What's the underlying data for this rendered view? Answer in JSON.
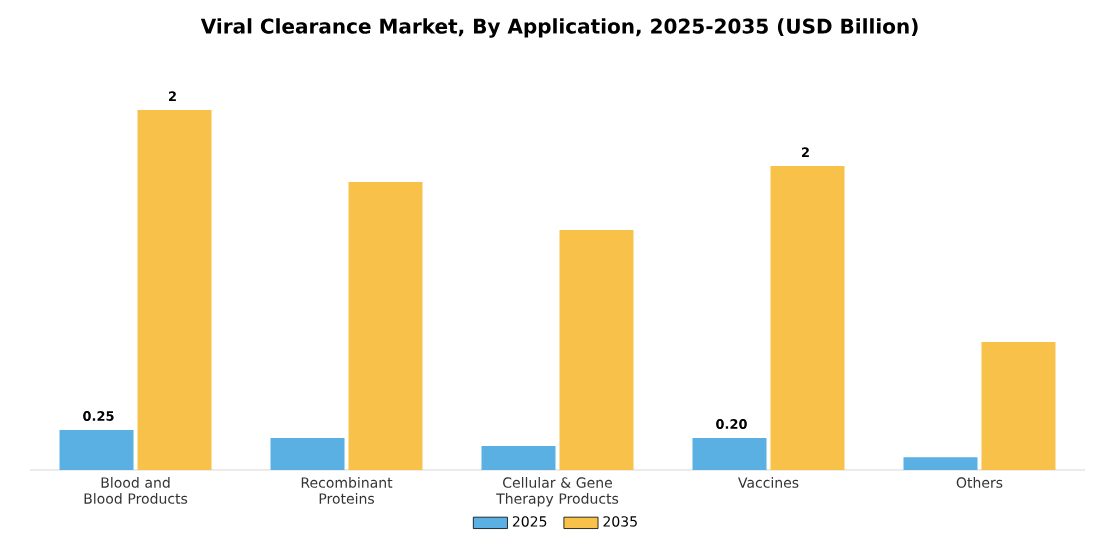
{
  "chart_data": {
    "type": "bar",
    "title": "Viral Clearance Market, By Application, 2025-2035 (USD Billion)",
    "categories": [
      "Blood and Blood Products",
      "Recombinant Proteins",
      "Cellular & Gene Therapy Products",
      "Vaccines",
      "Others"
    ],
    "series": [
      {
        "name": "2025",
        "color": "#5aafe3",
        "values": [
          0.25,
          0.2,
          0.15,
          0.2,
          0.08
        ],
        "value_labels": [
          "0.25",
          null,
          null,
          "0.20",
          null
        ]
      },
      {
        "name": "2035",
        "color": "#f7c14a",
        "values": [
          2.25,
          1.8,
          1.5,
          1.9,
          0.8
        ],
        "value_labels": [
          "2",
          null,
          null,
          "2",
          null
        ]
      }
    ],
    "tick_labels": "x",
    "legend": "bottom",
    "grid": false
  }
}
